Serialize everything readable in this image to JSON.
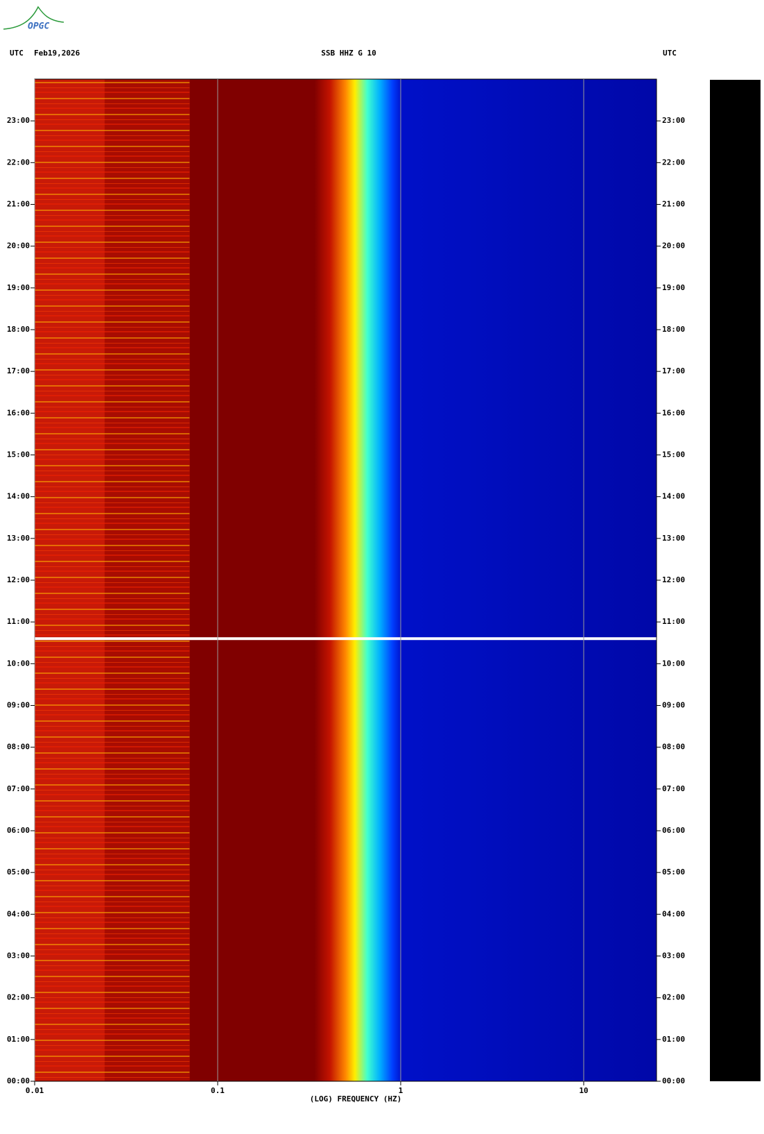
{
  "logo": "OPGC",
  "header": {
    "left": "UTC",
    "date": "Feb19,2026",
    "title": "SSB HHZ G 10",
    "right": "UTC"
  },
  "chart_data": {
    "type": "spectrogram",
    "x_label": "(LOG) FREQUENCY (HZ)",
    "xscale": "log",
    "xlim": [
      0.01,
      25
    ],
    "xticks": [
      0.01,
      0.1,
      1,
      10
    ],
    "ylim": [
      0,
      24
    ],
    "yticks": [
      {
        "value": 0,
        "label": "00:00"
      },
      {
        "value": 1,
        "label": "01:00"
      },
      {
        "value": 2,
        "label": "02:00"
      },
      {
        "value": 3,
        "label": "03:00"
      },
      {
        "value": 4,
        "label": "04:00"
      },
      {
        "value": 5,
        "label": "05:00"
      },
      {
        "value": 6,
        "label": "06:00"
      },
      {
        "value": 7,
        "label": "07:00"
      },
      {
        "value": 8,
        "label": "08:00"
      },
      {
        "value": 9,
        "label": "09:00"
      },
      {
        "value": 10,
        "label": "10:00"
      },
      {
        "value": 11,
        "label": "11:00"
      },
      {
        "value": 12,
        "label": "12:00"
      },
      {
        "value": 13,
        "label": "13:00"
      },
      {
        "value": 14,
        "label": "14:00"
      },
      {
        "value": 15,
        "label": "15:00"
      },
      {
        "value": 16,
        "label": "16:00"
      },
      {
        "value": 17,
        "label": "17:00"
      },
      {
        "value": 18,
        "label": "18:00"
      },
      {
        "value": 19,
        "label": "19:00"
      },
      {
        "value": 20,
        "label": "20:00"
      },
      {
        "value": 21,
        "label": "21:00"
      },
      {
        "value": 22,
        "label": "22:00"
      },
      {
        "value": 23,
        "label": "23:00"
      }
    ],
    "grid": true
  }
}
